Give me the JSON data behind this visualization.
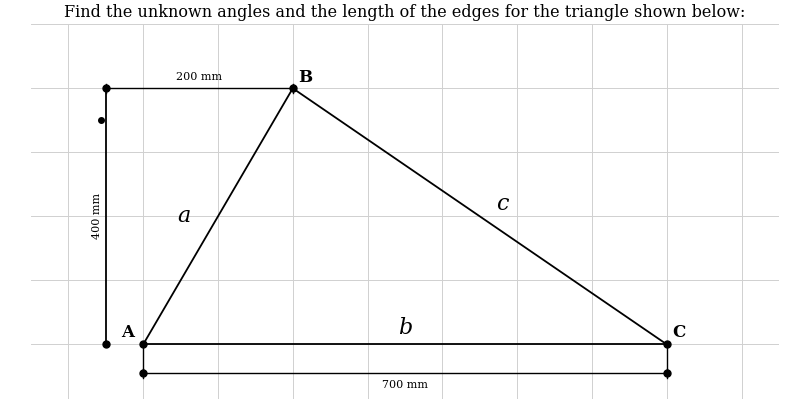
{
  "title": "Find the unknown angles and the length of the edges for the triangle shown below:",
  "title_fontsize": 11.5,
  "background_color": "#ffffff",
  "grid_color": "#d0d0d0",
  "line_color": "#000000",
  "dot_color": "#000000",
  "dot_size": 5,
  "A": [
    2.0,
    0.0
  ],
  "B": [
    4.0,
    4.0
  ],
  "C": [
    9.0,
    0.0
  ],
  "ref_left_x": 1.5,
  "ref_top_y": 4.0,
  "ref_mid_y": 3.5,
  "dim_200_label": "200 mm",
  "dim_400_label": "400 mm",
  "dim_700_label": "700 mm",
  "label_A": "A",
  "label_B": "B",
  "label_C": "C",
  "label_a": "a",
  "label_b": "b",
  "label_c": "c",
  "label_fontsize": 16,
  "vertex_label_fontsize": 12,
  "dim_fontsize": 8,
  "xlim": [
    0.5,
    10.5
  ],
  "ylim": [
    -0.85,
    5.0
  ],
  "figsize": [
    8.1,
    4.03
  ],
  "dpi": 100
}
